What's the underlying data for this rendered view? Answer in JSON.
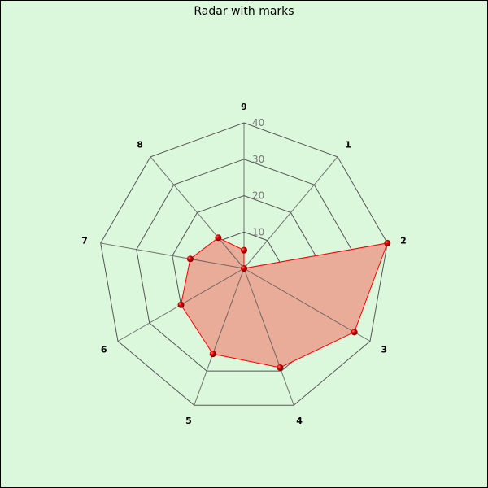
{
  "chart_data": {
    "type": "radar",
    "title": "Radar with marks",
    "categories": [
      "9",
      "1",
      "2",
      "3",
      "4",
      "5",
      "6",
      "7",
      "8"
    ],
    "values": [
      5,
      0,
      40,
      35,
      29,
      25,
      20,
      15,
      11
    ],
    "rlim": [
      0,
      40
    ],
    "ticks": [
      "10",
      "20",
      "30",
      "40"
    ],
    "grid": true,
    "colors": {
      "fill": "#e8ac98",
      "line": "#ff0000",
      "marker": "#cc0000",
      "grid": "#555555",
      "background": "#dcf8dc"
    }
  }
}
